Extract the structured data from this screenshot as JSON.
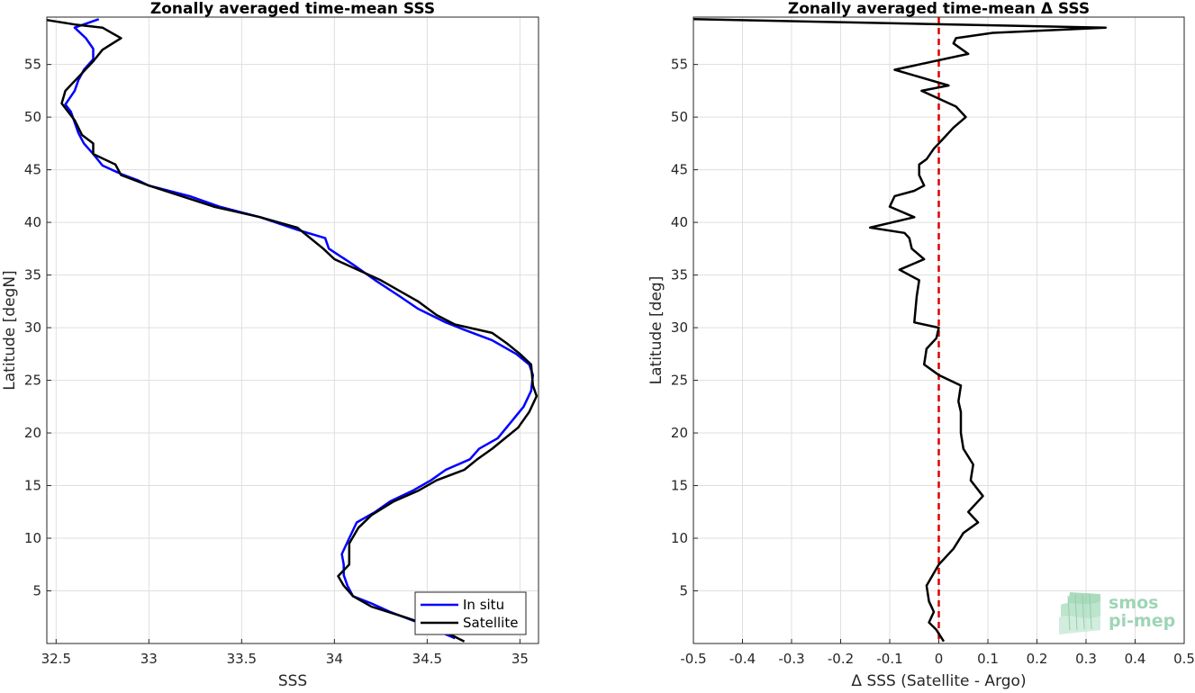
{
  "chart_data": [
    {
      "type": "line",
      "title": "Zonally averaged time-mean SSS",
      "xlabel": "SSS",
      "ylabel": "Latitude [degN]",
      "xlim": [
        32.45,
        35.1
      ],
      "ylim": [
        0,
        59.5
      ],
      "xticks": [
        "32.5",
        "33",
        "33.5",
        "34",
        "34.5",
        "35"
      ],
      "yticks": [
        "5",
        "10",
        "15",
        "20",
        "25",
        "30",
        "35",
        "40",
        "45",
        "50",
        "55"
      ],
      "grid": true,
      "legend_position": "bottom-right",
      "series": [
        {
          "name": "In situ",
          "color": "#0000ff",
          "points": [
            [
              34.65,
              0.5
            ],
            [
              34.45,
              2.0
            ],
            [
              34.3,
              3.0
            ],
            [
              34.2,
              3.8
            ],
            [
              34.1,
              4.5
            ],
            [
              34.07,
              5.5
            ],
            [
              34.05,
              6.5
            ],
            [
              34.05,
              7.5
            ],
            [
              34.04,
              8.5
            ],
            [
              34.08,
              10
            ],
            [
              34.12,
              11.5
            ],
            [
              34.22,
              12.5
            ],
            [
              34.3,
              13.5
            ],
            [
              34.42,
              14.5
            ],
            [
              34.52,
              15.5
            ],
            [
              34.6,
              16.5
            ],
            [
              34.73,
              17.5
            ],
            [
              34.78,
              18.5
            ],
            [
              34.88,
              19.5
            ],
            [
              34.95,
              21
            ],
            [
              35.02,
              22.5
            ],
            [
              35.06,
              24
            ],
            [
              35.07,
              25.5
            ],
            [
              35.05,
              26.5
            ],
            [
              34.98,
              27.5
            ],
            [
              34.85,
              28.8
            ],
            [
              34.7,
              29.8
            ],
            [
              34.6,
              30.5
            ],
            [
              34.45,
              31.8
            ],
            [
              34.35,
              33
            ],
            [
              34.22,
              34.5
            ],
            [
              34.1,
              36
            ],
            [
              33.97,
              37.5
            ],
            [
              33.95,
              38.5
            ],
            [
              33.8,
              39.3
            ],
            [
              33.6,
              40.5
            ],
            [
              33.38,
              41.5
            ],
            [
              33.22,
              42.5
            ],
            [
              33.0,
              43.5
            ],
            [
              32.94,
              44
            ],
            [
              32.85,
              44.6
            ],
            [
              32.75,
              45.4
            ],
            [
              32.7,
              46.5
            ],
            [
              32.65,
              47.5
            ],
            [
              32.62,
              48.5
            ],
            [
              32.6,
              49.5
            ],
            [
              32.58,
              50.5
            ],
            [
              32.55,
              51.2
            ],
            [
              32.6,
              52.5
            ],
            [
              32.62,
              53.5
            ],
            [
              32.65,
              54.5
            ],
            [
              32.7,
              55.5
            ],
            [
              32.7,
              56.5
            ],
            [
              32.66,
              57.5
            ],
            [
              32.6,
              58.5
            ],
            [
              32.73,
              59.3
            ]
          ]
        },
        {
          "name": "Satellite",
          "color": "#000000",
          "points": [
            [
              34.7,
              0.2
            ],
            [
              34.55,
              1.5
            ],
            [
              34.38,
              2.5
            ],
            [
              34.2,
              3.5
            ],
            [
              34.1,
              4.5
            ],
            [
              34.05,
              5.5
            ],
            [
              34.02,
              6.4
            ],
            [
              34.08,
              7.5
            ],
            [
              34.08,
              8.5
            ],
            [
              34.08,
              9.5
            ],
            [
              34.13,
              11
            ],
            [
              34.2,
              12.2
            ],
            [
              34.32,
              13.5
            ],
            [
              34.45,
              14.5
            ],
            [
              34.55,
              15.5
            ],
            [
              34.7,
              16.5
            ],
            [
              34.77,
              17.5
            ],
            [
              34.85,
              18.5
            ],
            [
              34.92,
              19.5
            ],
            [
              34.99,
              20.5
            ],
            [
              35.05,
              22
            ],
            [
              35.09,
              23.5
            ],
            [
              35.07,
              24.5
            ],
            [
              35.06,
              26.5
            ],
            [
              35.0,
              27.5
            ],
            [
              34.93,
              28.5
            ],
            [
              34.85,
              29.5
            ],
            [
              34.65,
              30.3
            ],
            [
              34.55,
              31.2
            ],
            [
              34.45,
              32.5
            ],
            [
              34.25,
              34.5
            ],
            [
              34.0,
              36.5
            ],
            [
              33.94,
              37.5
            ],
            [
              33.8,
              39.5
            ],
            [
              33.6,
              40.5
            ],
            [
              33.35,
              41.5
            ],
            [
              33.0,
              43.5
            ],
            [
              32.85,
              44.5
            ],
            [
              32.82,
              45.5
            ],
            [
              32.7,
              46.5
            ],
            [
              32.7,
              47.5
            ],
            [
              32.64,
              48.3
            ],
            [
              32.6,
              49.7
            ],
            [
              32.53,
              51.3
            ],
            [
              32.55,
              52.5
            ],
            [
              32.62,
              53.8
            ],
            [
              32.7,
              55.3
            ],
            [
              32.75,
              56.4
            ],
            [
              32.85,
              57.5
            ],
            [
              32.75,
              58.5
            ],
            [
              32.6,
              58.8
            ],
            [
              32.42,
              59.3
            ]
          ]
        }
      ]
    },
    {
      "type": "line",
      "title": "Zonally averaged time-mean Δ SSS",
      "xlabel": "Δ SSS (Satellite - Argo)",
      "ylabel": "Latitude [deg]",
      "xlim": [
        -0.5,
        0.5
      ],
      "ylim": [
        0,
        59.5
      ],
      "xticks": [
        "-0.5",
        "-0.4",
        "-0.3",
        "-0.2",
        "-0.1",
        "0",
        "0.1",
        "0.2",
        "0.3",
        "0.4",
        "0.5"
      ],
      "yticks": [
        "5",
        "10",
        "15",
        "20",
        "25",
        "30",
        "35",
        "40",
        "45",
        "50",
        "55"
      ],
      "grid": true,
      "reference_line": {
        "x": 0,
        "color": "#e00000",
        "style": "dashed"
      },
      "series": [
        {
          "color": "#000000",
          "points": [
            [
              0.01,
              0.2
            ],
            [
              -0.005,
              1.3
            ],
            [
              -0.02,
              2
            ],
            [
              -0.01,
              3
            ],
            [
              -0.02,
              4
            ],
            [
              -0.025,
              5.5
            ],
            [
              0.0,
              7.5
            ],
            [
              0.03,
              9
            ],
            [
              0.05,
              10.5
            ],
            [
              0.08,
              11.5
            ],
            [
              0.06,
              12.5
            ],
            [
              0.09,
              14
            ],
            [
              0.065,
              15.5
            ],
            [
              0.07,
              17
            ],
            [
              0.05,
              18.5
            ],
            [
              0.045,
              20
            ],
            [
              0.045,
              22
            ],
            [
              0.04,
              23
            ],
            [
              0.045,
              24.5
            ],
            [
              0.0,
              25.5
            ],
            [
              -0.03,
              26.5
            ],
            [
              -0.025,
              28
            ],
            [
              -0.005,
              29
            ],
            [
              0.0,
              30
            ],
            [
              -0.05,
              30.5
            ],
            [
              -0.045,
              33
            ],
            [
              -0.04,
              34.5
            ],
            [
              -0.08,
              35.5
            ],
            [
              -0.03,
              36.5
            ],
            [
              -0.055,
              37.5
            ],
            [
              -0.06,
              38.5
            ],
            [
              -0.07,
              39
            ],
            [
              -0.14,
              39.5
            ],
            [
              -0.05,
              40.5
            ],
            [
              -0.1,
              41.5
            ],
            [
              -0.09,
              42.5
            ],
            [
              -0.05,
              43
            ],
            [
              -0.03,
              43.5
            ],
            [
              -0.04,
              44.5
            ],
            [
              -0.04,
              45.5
            ],
            [
              -0.025,
              46
            ],
            [
              -0.01,
              47
            ],
            [
              0.01,
              48
            ],
            [
              0.03,
              49
            ],
            [
              0.055,
              50
            ],
            [
              0.035,
              51
            ],
            [
              -0.035,
              52.5
            ],
            [
              0.02,
              53
            ],
            [
              -0.09,
              54.5
            ],
            [
              0.06,
              56
            ],
            [
              0.03,
              57
            ],
            [
              0.035,
              57.5
            ],
            [
              0.11,
              58
            ],
            [
              0.34,
              58.5
            ],
            [
              -0.5,
              59.3
            ]
          ]
        }
      ]
    }
  ],
  "legend": {
    "items": [
      "In situ",
      "Satellite"
    ]
  },
  "logo": {
    "line1": "smos",
    "line2": "pi-mep"
  }
}
